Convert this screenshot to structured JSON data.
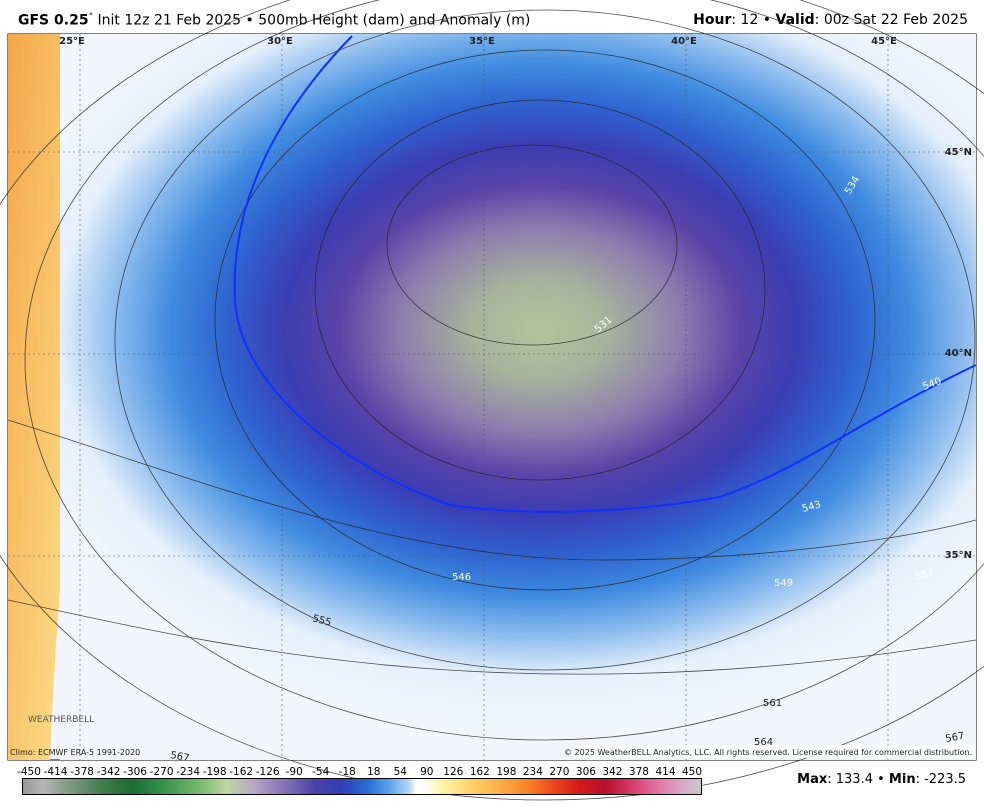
{
  "header": {
    "model": "GFS 0.25",
    "degree": "°",
    "init": "Init 12z 21 Feb 2025 • 500mb Height (dam) and Anomaly (m)",
    "hour_label": "Hour",
    "hour_value": ": 12 •",
    "valid_label": "Valid",
    "valid_value": ": 00z Sat 22 Feb 2025"
  },
  "map": {
    "longitudes": [
      "25°E",
      "30°E",
      "35°E",
      "40°E",
      "45°E"
    ],
    "latitudes": [
      "45°N",
      "40°N",
      "35°N"
    ],
    "contours": [
      "534",
      "531",
      "540",
      "543",
      "546",
      "549",
      "552",
      "555",
      "561",
      "564",
      "567",
      "567"
    ],
    "logo": "WEATHERBELL",
    "climo": "Climo: ECMWF ERA-5 1991-2020",
    "copyright": "© 2025 WeatherBELL Analytics, LLC. All rights reserved. License required for commercial distribution."
  },
  "colorbar": {
    "labels": [
      -450,
      -414,
      -378,
      -342,
      -306,
      -270,
      -234,
      -198,
      -162,
      -126,
      -90,
      -54,
      -18,
      18,
      54,
      90,
      126,
      162,
      198,
      234,
      270,
      306,
      342,
      378,
      414,
      450
    ]
  },
  "footer": {
    "max_label": "Max",
    "max_value": ": 133.4 •",
    "min_label": "Min",
    "min_value": ": -223.5"
  }
}
